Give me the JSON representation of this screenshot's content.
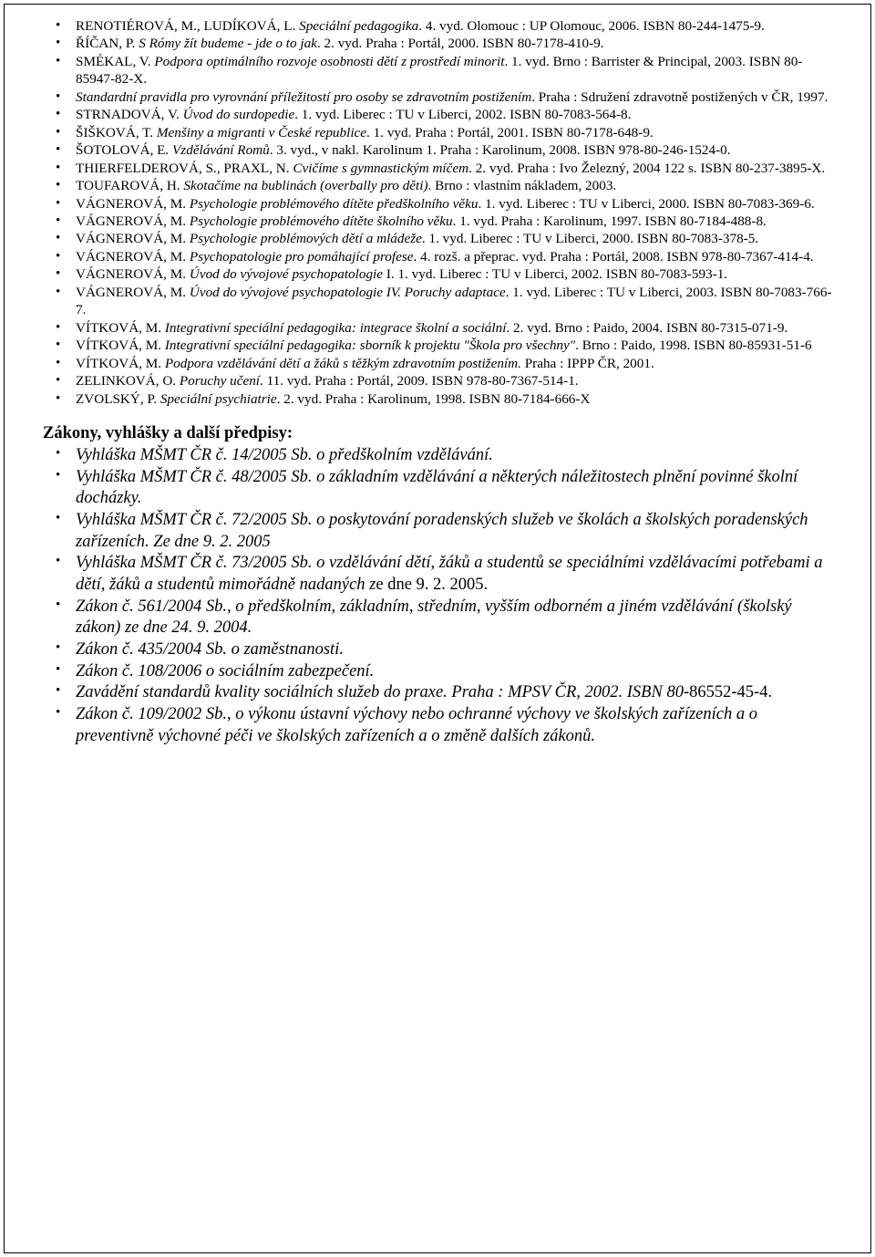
{
  "bibliography": [
    [
      {
        "t": "RENOTIÉROVÁ, M., LUDÍKOVÁ, L. ",
        "i": false
      },
      {
        "t": "Speciální pedagogika",
        "i": true
      },
      {
        "t": ". 4. vyd. Olomouc : UP Olomouc, 2006. ISBN 80-244-1475-9.",
        "i": false
      }
    ],
    [
      {
        "t": "ŘÍČAN, P. ",
        "i": false
      },
      {
        "t": "S Rómy žít budeme - jde o to jak",
        "i": true
      },
      {
        "t": ". 2. vyd. Praha : Portál, 2000. ISBN 80-7178-410-9.",
        "i": false
      }
    ],
    [
      {
        "t": "SMÉKAL, V. ",
        "i": false
      },
      {
        "t": "Podpora optimálního rozvoje osobnosti dětí z prostředí minorit",
        "i": true
      },
      {
        "t": ". 1. vyd. Brno : Barrister & Principal, 2003. ISBN 80-85947-82-X.",
        "i": false
      }
    ],
    [
      {
        "t": "Standardní pravidla pro vyrovnání příležitostí pro osoby se zdravotním postižením",
        "i": true
      },
      {
        "t": ". Praha : Sdružení zdravotně postižených v ČR, 1997.",
        "i": false
      }
    ],
    [
      {
        "t": "STRNADOVÁ, V. ",
        "i": false
      },
      {
        "t": "Úvod do surdopedie",
        "i": true
      },
      {
        "t": ". 1. vyd. Liberec : TU v Liberci, 2002. ISBN 80-7083-564-8.",
        "i": false
      }
    ],
    [
      {
        "t": "ŠIŠKOVÁ, T. ",
        "i": false
      },
      {
        "t": "Menšiny a migranti v České republice",
        "i": true
      },
      {
        "t": ". 1. vyd. Praha : Portál, 2001. ISBN 80-7178-648-9.",
        "i": false
      }
    ],
    [
      {
        "t": "ŠOTOLOVÁ, E. ",
        "i": false
      },
      {
        "t": "Vzdělávání Romů",
        "i": true
      },
      {
        "t": ". 3. vyd., v nakl. Karolinum 1. Praha : Karolinum, 2008. ISBN 978-80-246-1524-0.",
        "i": false
      }
    ],
    [
      {
        "t": "THIERFELDEROVÁ, S., PRAXL, N. ",
        "i": false
      },
      {
        "t": "Cvičíme s gymnastickým míčem",
        "i": true
      },
      {
        "t": ". 2. vyd. Praha : Ivo Železný, 2004 122 s. ISBN 80-237-3895-X.",
        "i": false
      }
    ],
    [
      {
        "t": "TOUFAROVÁ, H. ",
        "i": false
      },
      {
        "t": "Skotačíme na bublinách (overbally pro děti)",
        "i": true
      },
      {
        "t": ". Brno : vlastním nákladem, 2003.",
        "i": false
      }
    ],
    [
      {
        "t": "VÁGNEROVÁ, M. ",
        "i": false
      },
      {
        "t": "Psychologie problémového dítěte předškolního věku",
        "i": true
      },
      {
        "t": ". 1. vyd. Liberec : TU v Liberci, 2000. ISBN 80-7083-369-6.",
        "i": false
      }
    ],
    [
      {
        "t": "VÁGNEROVÁ, M. ",
        "i": false
      },
      {
        "t": "Psychologie problémového dítěte školního věku",
        "i": true
      },
      {
        "t": ". 1. vyd. Praha : Karolinum, 1997. ISBN 80-7184-488-8.",
        "i": false
      }
    ],
    [
      {
        "t": "VÁGNEROVÁ, M. ",
        "i": false
      },
      {
        "t": "Psychologie problémových dětí a mládeže",
        "i": true
      },
      {
        "t": ". 1. vyd. Liberec : TU v Liberci, 2000. ISBN 80-7083-378-5.",
        "i": false
      }
    ],
    [
      {
        "t": "VÁGNEROVÁ, M. ",
        "i": false
      },
      {
        "t": "Psychopatologie pro pomáhající profese",
        "i": true
      },
      {
        "t": ". 4. rozš. a přeprac. vyd. Praha : Portál, 2008. ISBN 978-80-7367-414-4.",
        "i": false
      }
    ],
    [
      {
        "t": "VÁGNEROVÁ, M. ",
        "i": false
      },
      {
        "t": "Úvod do vývojové psychopatologie",
        "i": true
      },
      {
        "t": " I. 1. vyd. Liberec : TU v Liberci, 2002. ISBN 80-7083-593-1.",
        "i": false
      }
    ],
    [
      {
        "t": "VÁGNEROVÁ, M. ",
        "i": false
      },
      {
        "t": "Úvod do vývojové psychopatologie IV. Poruchy adaptace",
        "i": true
      },
      {
        "t": ". 1. vyd. Liberec : TU v Liberci, 2003. ISBN 80-7083-766-7.",
        "i": false
      }
    ],
    [
      {
        "t": "VÍTKOVÁ, M. ",
        "i": false
      },
      {
        "t": "Integrativní speciální pedagogika: integrace školní a sociální",
        "i": true
      },
      {
        "t": ". 2. vyd. Brno : Paido, 2004. ISBN 80-7315-071-9.",
        "i": false
      }
    ],
    [
      {
        "t": "VÍTKOVÁ, M. ",
        "i": false
      },
      {
        "t": "Integrativní speciální pedagogika: sborník k projektu \"Škola pro všechny\"",
        "i": true
      },
      {
        "t": ". Brno : Paido, 1998. ISBN 80-85931-51-6",
        "i": false
      }
    ],
    [
      {
        "t": "VÍTKOVÁ, M. ",
        "i": false
      },
      {
        "t": "Podpora vzdělávání dětí a žáků s těžkým zdravotním postižením. ",
        "i": true
      },
      {
        "t": "Praha : IPPP ČR, 2001.",
        "i": false
      }
    ],
    [
      {
        "t": "ZELINKOVÁ, O. ",
        "i": false
      },
      {
        "t": "Poruchy učení",
        "i": true
      },
      {
        "t": ". 11. vyd. Praha : Portál, 2009. ISBN 978-80-7367-514-1.",
        "i": false
      }
    ],
    [
      {
        "t": "ZVOLSKÝ, P. ",
        "i": false
      },
      {
        "t": "Speciální psychiatrie",
        "i": true
      },
      {
        "t": ". 2. vyd. Praha : Karolinum, 1998. ISBN 80-7184-666-X",
        "i": false
      }
    ]
  ],
  "section_heading": "Zákony, vyhlášky a další předpisy:",
  "laws": [
    [
      {
        "t": "Vyhláška MŠMT ČR č. 14/2005 Sb. o předškolním vzdělávání.",
        "i": true
      }
    ],
    [
      {
        "t": "Vyhláška MŠMT ČR č. 48/2005 Sb. o základním vzdělávání a některých náležitostech plnění povinné školní docházky.",
        "i": true
      }
    ],
    [
      {
        "t": "Vyhláška MŠMT ČR č. 72/2005 Sb. o poskytování poradenských služeb ve školách a školských poradenských zařízeních. Ze dne 9. 2. 2005",
        "i": true
      }
    ],
    [
      {
        "t": "Vyhláška MŠMT ČR č. 73/2005 Sb. o vzdělávání dětí, žáků a studentů se speciálními vzdělávacími potřebami a dětí, žáků a studentů mimořádně nadaných z",
        "i": true
      },
      {
        "t": "e dne 9. 2. 2005.",
        "i": false
      }
    ],
    [
      {
        "t": "Zákon č. 561/2004 Sb., o předškolním, základním, středním, vyšším odborném a jiném vzdělávání (školský zákon) ze dne 24. 9. 2004.",
        "i": true
      }
    ],
    [
      {
        "t": "Zákon č. 435/2004 Sb. o zaměstnanosti.",
        "i": true
      }
    ],
    [
      {
        "t": "Zákon č. 108/2006 o sociálním zabezpečení.",
        "i": true
      }
    ],
    [
      {
        "t": "Zavádění standardů kvality sociálních služeb do praxe. Praha : MPSV ČR, 2002. ISBN 80-",
        "i": true
      },
      {
        "t": "86552-45-4.",
        "i": false
      }
    ],
    [
      {
        "t": "Zákon č. 109/2002 Sb., o výkonu ústavní výchovy nebo ochranné výchovy ve školských zařízeních a o preventivně výchovné péči ve školských zařízeních a o změně dalších zákonů.",
        "i": true
      }
    ]
  ]
}
